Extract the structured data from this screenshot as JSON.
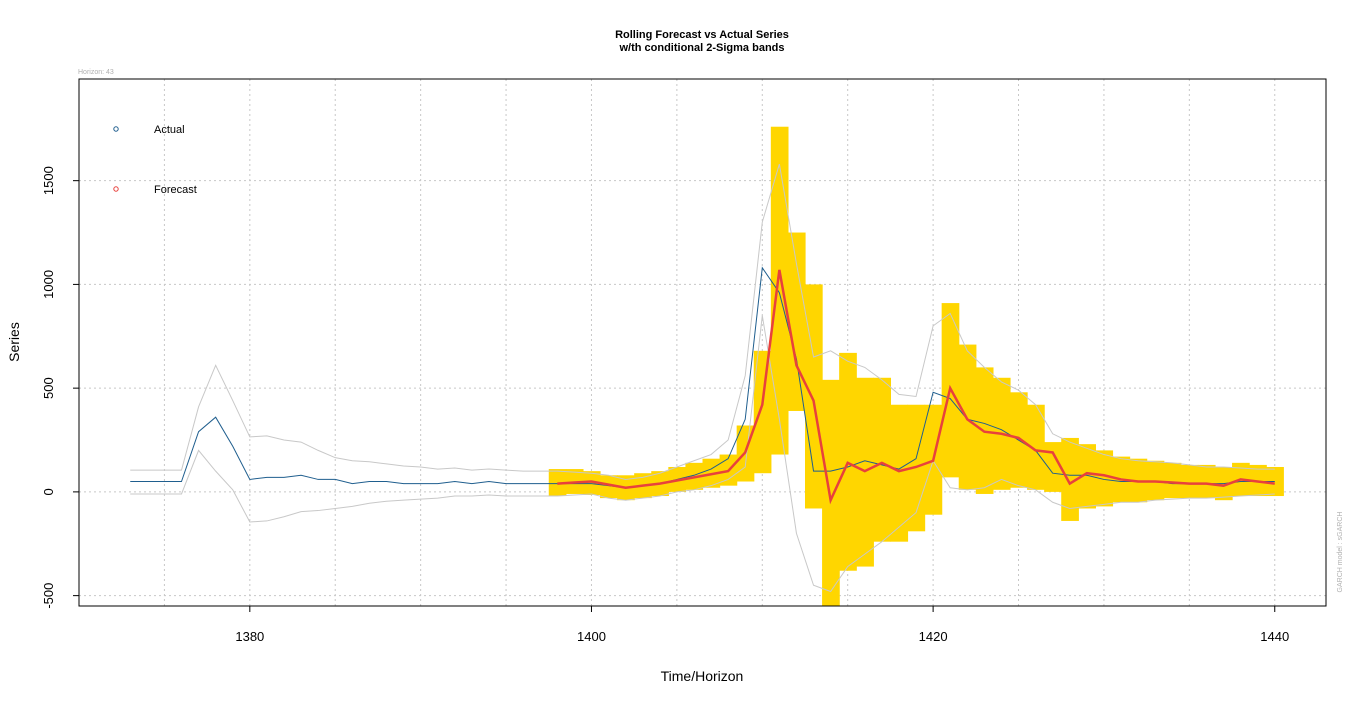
{
  "chart_data": {
    "type": "line",
    "title": "Rolling Forecast vs Actual Series",
    "subtitle": "w/th conditional 2-Sigma bands",
    "horizon_note": "Horizon: 43",
    "side_note": "GARCH model : sGARCH",
    "xlabel": "Time/Horizon",
    "ylabel": "Series",
    "xlim": [
      1370,
      1443
    ],
    "ylim": [
      -550,
      1990
    ],
    "x_ticks": [
      1380,
      1400,
      1420,
      1440
    ],
    "y_ticks": [
      -500,
      0,
      500,
      1000,
      1500
    ],
    "grid": true,
    "legend": {
      "position": "top-left",
      "entries": [
        {
          "label": "Actual",
          "color": "#1f5e8e"
        },
        {
          "label": "Forecast",
          "color": "#e8413c"
        }
      ]
    },
    "colors": {
      "actual": "#1f5e8e",
      "forecast": "#e8413c",
      "band": "#ffd600",
      "bound_lines": "#c8c8c8",
      "grid": "#c8c8c8"
    },
    "series": [
      {
        "role": "actual",
        "x": [
          1373,
          1374,
          1375,
          1376,
          1377,
          1378,
          1379,
          1380,
          1381,
          1382,
          1383,
          1384,
          1385,
          1386,
          1387,
          1388,
          1389,
          1390,
          1391,
          1392,
          1393,
          1394,
          1395,
          1396,
          1397,
          1398,
          1399,
          1400,
          1401,
          1402,
          1403,
          1404,
          1405,
          1406,
          1407,
          1408,
          1409,
          1410,
          1411,
          1412,
          1413,
          1414,
          1415,
          1416,
          1417,
          1418,
          1419,
          1420,
          1421,
          1422,
          1423,
          1424,
          1425,
          1426,
          1427,
          1428,
          1429,
          1430,
          1431,
          1432,
          1433,
          1434,
          1435,
          1436,
          1437,
          1438,
          1439,
          1440
        ],
        "values": [
          50,
          50,
          50,
          50,
          290,
          360,
          220,
          60,
          70,
          70,
          80,
          60,
          60,
          40,
          50,
          50,
          40,
          40,
          40,
          50,
          40,
          50,
          40,
          40,
          40,
          40,
          40,
          40,
          30,
          20,
          30,
          40,
          60,
          80,
          110,
          160,
          350,
          1080,
          960,
          640,
          100,
          100,
          120,
          150,
          130,
          110,
          160,
          480,
          450,
          350,
          330,
          300,
          250,
          200,
          90,
          80,
          80,
          60,
          50,
          50,
          50,
          40,
          40,
          40,
          40,
          50,
          50,
          50
        ]
      },
      {
        "role": "forecast",
        "x": [
          1398,
          1399,
          1400,
          1401,
          1402,
          1403,
          1404,
          1405,
          1406,
          1407,
          1408,
          1409,
          1410,
          1411,
          1412,
          1413,
          1414,
          1415,
          1416,
          1417,
          1418,
          1419,
          1420,
          1421,
          1422,
          1423,
          1424,
          1425,
          1426,
          1427,
          1428,
          1429,
          1430,
          1431,
          1432,
          1433,
          1434,
          1435,
          1436,
          1437,
          1438,
          1439,
          1440
        ],
        "values": [
          40,
          45,
          50,
          35,
          20,
          30,
          40,
          55,
          70,
          85,
          100,
          190,
          420,
          1070,
          610,
          440,
          -40,
          140,
          100,
          140,
          100,
          120,
          150,
          500,
          350,
          290,
          280,
          260,
          200,
          190,
          40,
          90,
          80,
          60,
          50,
          50,
          45,
          40,
          40,
          30,
          60,
          50,
          40
        ]
      },
      {
        "role": "band_lower",
        "x": [
          1398,
          1399,
          1400,
          1401,
          1402,
          1403,
          1404,
          1405,
          1406,
          1407,
          1408,
          1409,
          1410,
          1411,
          1412,
          1413,
          1414,
          1415,
          1416,
          1417,
          1418,
          1419,
          1420,
          1421,
          1422,
          1423,
          1424,
          1425,
          1426,
          1427,
          1428,
          1429,
          1430,
          1431,
          1432,
          1433,
          1434,
          1435,
          1436,
          1437,
          1438,
          1439,
          1440
        ],
        "values": [
          -20,
          -10,
          -15,
          -30,
          -40,
          -30,
          -20,
          0,
          10,
          20,
          30,
          50,
          90,
          180,
          390,
          -80,
          -550,
          -380,
          -360,
          -240,
          -240,
          -190,
          -110,
          70,
          10,
          -10,
          10,
          20,
          10,
          0,
          -140,
          -80,
          -70,
          -50,
          -50,
          -40,
          -30,
          -30,
          -30,
          -40,
          -20,
          -20,
          -20
        ]
      },
      {
        "role": "band_upper",
        "x": [
          1398,
          1399,
          1400,
          1401,
          1402,
          1403,
          1404,
          1405,
          1406,
          1407,
          1408,
          1409,
          1410,
          1411,
          1412,
          1413,
          1414,
          1415,
          1416,
          1417,
          1418,
          1419,
          1420,
          1421,
          1422,
          1423,
          1424,
          1425,
          1426,
          1427,
          1428,
          1429,
          1430,
          1431,
          1432,
          1433,
          1434,
          1435,
          1436,
          1437,
          1438,
          1439,
          1440
        ],
        "values": [
          110,
          110,
          100,
          80,
          80,
          90,
          100,
          120,
          140,
          160,
          180,
          320,
          680,
          1760,
          1250,
          1000,
          540,
          670,
          550,
          550,
          420,
          420,
          420,
          910,
          710,
          600,
          550,
          480,
          420,
          240,
          260,
          230,
          200,
          170,
          160,
          150,
          140,
          130,
          130,
          120,
          140,
          130,
          120
        ]
      },
      {
        "role": "bound_upper_line",
        "x": [
          1373,
          1374,
          1375,
          1376,
          1377,
          1378,
          1379,
          1380,
          1381,
          1382,
          1383,
          1384,
          1385,
          1386,
          1387,
          1388,
          1389,
          1390,
          1391,
          1392,
          1393,
          1394,
          1395,
          1396,
          1397,
          1398,
          1399,
          1400,
          1401,
          1402,
          1403,
          1404,
          1405,
          1406,
          1407,
          1408,
          1409,
          1410,
          1411,
          1412,
          1413,
          1414,
          1415,
          1416,
          1417,
          1418,
          1419,
          1420,
          1421,
          1422,
          1423,
          1424,
          1425,
          1426,
          1427,
          1428,
          1429,
          1430,
          1431,
          1432,
          1433,
          1434,
          1435,
          1436,
          1437,
          1438,
          1439,
          1440
        ],
        "values": [
          105,
          105,
          105,
          105,
          410,
          610,
          440,
          265,
          270,
          250,
          240,
          200,
          165,
          150,
          145,
          135,
          125,
          120,
          110,
          115,
          105,
          110,
          105,
          100,
          100,
          100,
          95,
          90,
          80,
          60,
          70,
          90,
          120,
          150,
          180,
          250,
          560,
          1300,
          1580,
          1100,
          650,
          680,
          630,
          600,
          540,
          470,
          460,
          800,
          860,
          680,
          600,
          530,
          490,
          420,
          280,
          240,
          210,
          180,
          160,
          150,
          145,
          140,
          130,
          120,
          120,
          115,
          110,
          110
        ]
      },
      {
        "role": "bound_lower_line",
        "x": [
          1373,
          1374,
          1375,
          1376,
          1377,
          1378,
          1379,
          1380,
          1381,
          1382,
          1383,
          1384,
          1385,
          1386,
          1387,
          1388,
          1389,
          1390,
          1391,
          1392,
          1393,
          1394,
          1395,
          1396,
          1397,
          1398,
          1399,
          1400,
          1401,
          1402,
          1403,
          1404,
          1405,
          1406,
          1407,
          1408,
          1409,
          1410,
          1411,
          1412,
          1413,
          1414,
          1415,
          1416,
          1417,
          1418,
          1419,
          1420,
          1421,
          1422,
          1423,
          1424,
          1425,
          1426,
          1427,
          1428,
          1429,
          1430,
          1431,
          1432,
          1433,
          1434,
          1435,
          1436,
          1437,
          1438,
          1439,
          1440
        ],
        "values": [
          -10,
          -10,
          -10,
          -10,
          200,
          100,
          10,
          -145,
          -140,
          -120,
          -95,
          -90,
          -80,
          -70,
          -55,
          -45,
          -40,
          -35,
          -30,
          -20,
          -20,
          -15,
          -20,
          -20,
          -20,
          -20,
          -15,
          -10,
          -30,
          -40,
          -30,
          -20,
          0,
          10,
          30,
          60,
          120,
          850,
          350,
          -200,
          -450,
          -480,
          -360,
          -300,
          -240,
          -170,
          -100,
          150,
          20,
          10,
          20,
          60,
          30,
          10,
          -50,
          -80,
          -70,
          -60,
          -50,
          -50,
          -40,
          -35,
          -30,
          -30,
          -25,
          -20,
          -15,
          -10
        ]
      }
    ]
  }
}
